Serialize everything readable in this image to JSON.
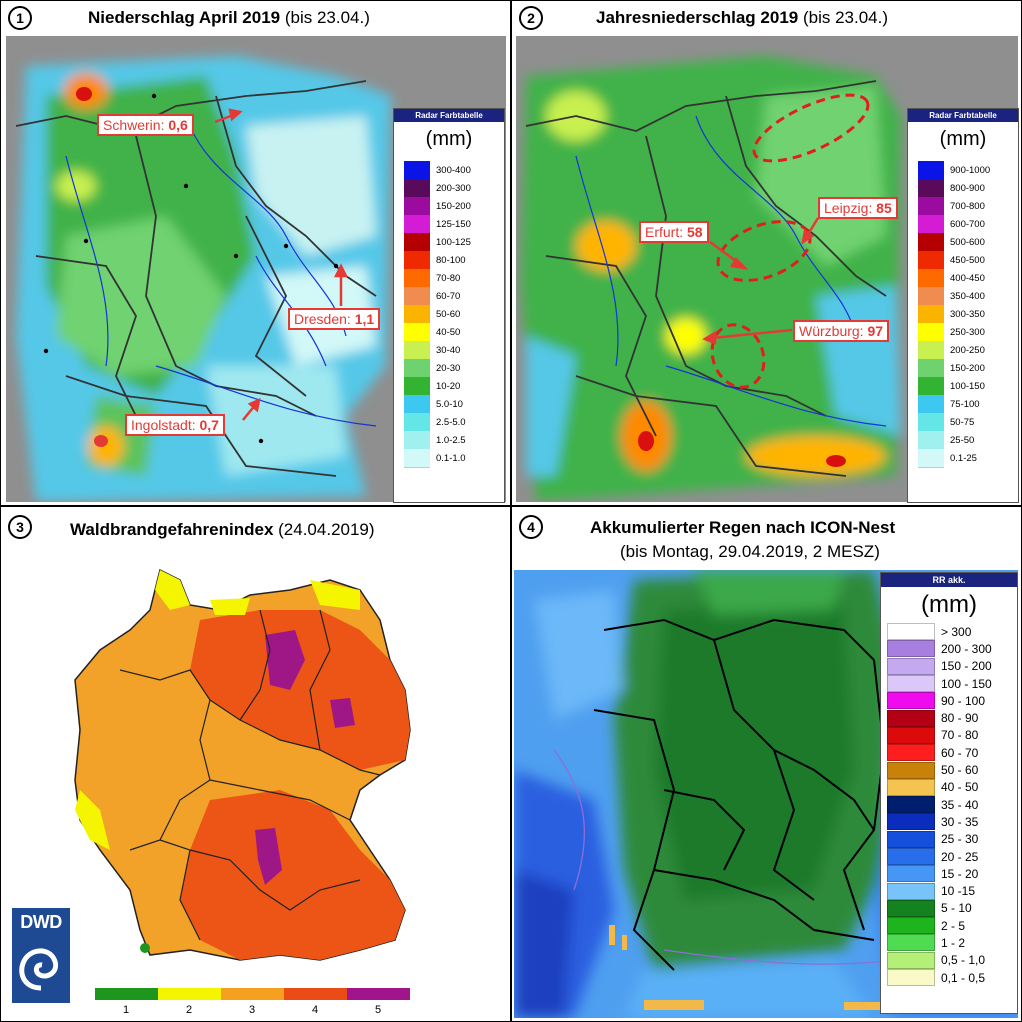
{
  "panels": [
    {
      "number": "1",
      "title_bold": "Niederschlag April 2019",
      "title_light": "(bis 23.04.)",
      "legend": {
        "header": "Radar Farbtabelle",
        "unit": "(mm)",
        "items": [
          {
            "label": "300-400",
            "color": "#0a14e6"
          },
          {
            "label": "200-300",
            "color": "#5a0a5a"
          },
          {
            "label": "150-200",
            "color": "#9b0ba0"
          },
          {
            "label": "125-150",
            "color": "#d51cd5"
          },
          {
            "label": "100-125",
            "color": "#b40000"
          },
          {
            "label": "80-100",
            "color": "#f02a00"
          },
          {
            "label": "70-80",
            "color": "#ff6a00"
          },
          {
            "label": "60-70",
            "color": "#f08c50"
          },
          {
            "label": "50-60",
            "color": "#fab400"
          },
          {
            "label": "40-50",
            "color": "#ffff00"
          },
          {
            "label": "30-40",
            "color": "#c8f050"
          },
          {
            "label": "20-30",
            "color": "#6ed26e"
          },
          {
            "label": "10-20",
            "color": "#32b432"
          },
          {
            "label": "5.0-10",
            "color": "#3cc8f0"
          },
          {
            "label": "2.5-5.0",
            "color": "#64e6e6"
          },
          {
            "label": "1.0-2.5",
            "color": "#a0f0f0"
          },
          {
            "label": "0.1-1.0",
            "color": "#d2f8f8"
          }
        ]
      },
      "callouts": [
        {
          "city": "Schwerin:",
          "value": "0,6"
        },
        {
          "city": "Dresden:",
          "value": "1,1"
        },
        {
          "city": "Ingolstadt:",
          "value": "0,7"
        }
      ]
    },
    {
      "number": "2",
      "title_bold": "Jahresniederschlag 2019",
      "title_light": "(bis 23.04.)",
      "legend": {
        "header": "Radar Farbtabelle",
        "unit": "(mm)",
        "items": [
          {
            "label": "900-1000",
            "color": "#0a14e6"
          },
          {
            "label": "800-900",
            "color": "#5a0a5a"
          },
          {
            "label": "700-800",
            "color": "#9b0ba0"
          },
          {
            "label": "600-700",
            "color": "#d51cd5"
          },
          {
            "label": "500-600",
            "color": "#b40000"
          },
          {
            "label": "450-500",
            "color": "#f02a00"
          },
          {
            "label": "400-450",
            "color": "#ff6a00"
          },
          {
            "label": "350-400",
            "color": "#f08c50"
          },
          {
            "label": "300-350",
            "color": "#fab400"
          },
          {
            "label": "250-300",
            "color": "#ffff00"
          },
          {
            "label": "200-250",
            "color": "#c8f050"
          },
          {
            "label": "150-200",
            "color": "#6ed26e"
          },
          {
            "label": "100-150",
            "color": "#32b432"
          },
          {
            "label": "75-100",
            "color": "#3cc8f0"
          },
          {
            "label": "50-75",
            "color": "#64e6e6"
          },
          {
            "label": "25-50",
            "color": "#a0f0f0"
          },
          {
            "label": "0.1-25",
            "color": "#d2f8f8"
          }
        ]
      },
      "callouts": [
        {
          "city": "Erfurt:",
          "value": "58"
        },
        {
          "city": "Leipzig:",
          "value": "85"
        },
        {
          "city": "Würzburg:",
          "value": "97"
        }
      ]
    },
    {
      "number": "3",
      "title_bold": "Waldbrandgefahrenindex",
      "title_light": "(24.04.2019)",
      "scale": [
        {
          "label": "1",
          "color": "#1e961e"
        },
        {
          "label": "2",
          "color": "#f5f500"
        },
        {
          "label": "3",
          "color": "#f5a01e"
        },
        {
          "label": "4",
          "color": "#eb4b14"
        },
        {
          "label": "5",
          "color": "#a0148c"
        }
      ],
      "logo_text": "DWD"
    },
    {
      "number": "4",
      "title_bold": "Akkumulierter Regen nach ICON-Nest",
      "subtitle": "(bis Montag, 29.04.2019, 2 MESZ)",
      "legend": {
        "header": "RR akk.",
        "unit": "(mm)",
        "items": [
          {
            "label": "> 300",
            "color": "#ffffff"
          },
          {
            "label": "200 - 300",
            "color": "#a87fe0"
          },
          {
            "label": "150 - 200",
            "color": "#c4a8f0"
          },
          {
            "label": "100 - 150",
            "color": "#dcc8f8"
          },
          {
            "label": "90 - 100",
            "color": "#f00af0"
          },
          {
            "label": "80 - 90",
            "color": "#b40014"
          },
          {
            "label": "70 - 80",
            "color": "#dc0a0a"
          },
          {
            "label": "60 - 70",
            "color": "#ff1e1e"
          },
          {
            "label": "50 - 60",
            "color": "#c8820a"
          },
          {
            "label": "40 - 50",
            "color": "#f5c350"
          },
          {
            "label": "35 - 40",
            "color": "#001e6e"
          },
          {
            "label": "30 - 35",
            "color": "#0a2dbe"
          },
          {
            "label": "25 - 30",
            "color": "#1450dc"
          },
          {
            "label": "20 - 25",
            "color": "#286eeb"
          },
          {
            "label": "15 - 20",
            "color": "#4696f5"
          },
          {
            "label": "10 -15",
            "color": "#78c3fa"
          },
          {
            "label": "5 - 10",
            "color": "#14821e"
          },
          {
            "label": "2 - 5",
            "color": "#1eb41e"
          },
          {
            "label": "1 - 2",
            "color": "#50dc50"
          },
          {
            "label": "0,5 - 1,0",
            "color": "#b4f078"
          },
          {
            "label": "0,1 - 0,5",
            "color": "#fafac8"
          }
        ]
      }
    }
  ]
}
